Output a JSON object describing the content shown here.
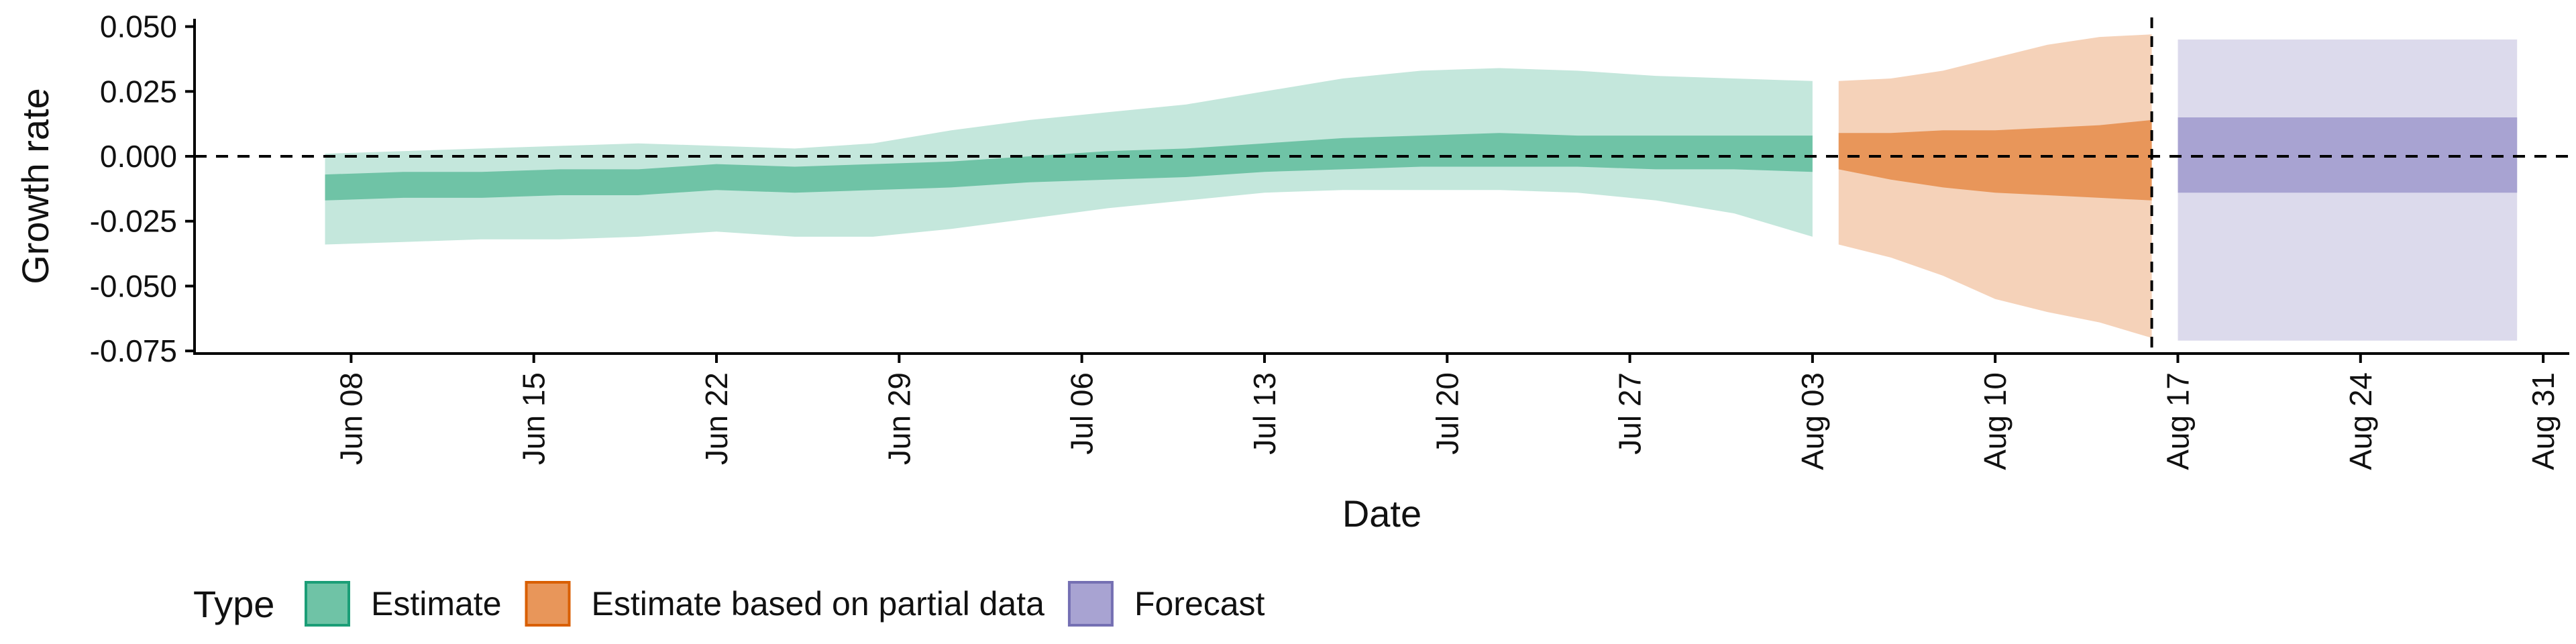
{
  "chart_data": {
    "type": "area",
    "xlabel": "Date",
    "ylabel": "Growth rate",
    "x_start": "2020-06-07",
    "x_range": [
      "2020-06-02",
      "2020-09-01"
    ],
    "ylim": [
      -0.076,
      0.053
    ],
    "x_ticks": [
      {
        "date": "2020-06-08",
        "label": "Jun 08"
      },
      {
        "date": "2020-06-15",
        "label": "Jun 15"
      },
      {
        "date": "2020-06-22",
        "label": "Jun 22"
      },
      {
        "date": "2020-06-29",
        "label": "Jun 29"
      },
      {
        "date": "2020-07-06",
        "label": "Jul 06"
      },
      {
        "date": "2020-07-13",
        "label": "Jul 13"
      },
      {
        "date": "2020-07-20",
        "label": "Jul 20"
      },
      {
        "date": "2020-07-27",
        "label": "Jul 27"
      },
      {
        "date": "2020-08-03",
        "label": "Aug 03"
      },
      {
        "date": "2020-08-10",
        "label": "Aug 10"
      },
      {
        "date": "2020-08-17",
        "label": "Aug 17"
      },
      {
        "date": "2020-08-24",
        "label": "Aug 24"
      },
      {
        "date": "2020-08-31",
        "label": "Aug 31"
      }
    ],
    "y_ticks": [
      {
        "value": 0.05,
        "label": "0.050"
      },
      {
        "value": 0.025,
        "label": "0.025"
      },
      {
        "value": 0.0,
        "label": "0.000"
      },
      {
        "value": -0.025,
        "label": "-0.025"
      },
      {
        "value": -0.05,
        "label": "-0.050"
      },
      {
        "value": -0.075,
        "label": "-0.075"
      }
    ],
    "hline_y": 0.0,
    "vline_date": "2020-08-16",
    "grid": false,
    "legend": {
      "position": "bottom-left",
      "title": "Type",
      "items": [
        {
          "label": "Estimate",
          "color": "#6fc3a6",
          "border": "#1b9e77"
        },
        {
          "label": "Estimate based on partial data",
          "color": "#e8965a",
          "border": "#d95f02"
        },
        {
          "label": "Forecast",
          "color": "#a8a3d2",
          "border": "#7570b3"
        }
      ]
    },
    "series": [
      {
        "type_label": "Estimate",
        "outer_color": "#c4e7dc",
        "inner_color": "#6fc3a6",
        "dates": [
          "2020-06-07",
          "2020-06-10",
          "2020-06-13",
          "2020-06-16",
          "2020-06-19",
          "2020-06-22",
          "2020-06-25",
          "2020-06-28",
          "2020-07-01",
          "2020-07-04",
          "2020-07-07",
          "2020-07-10",
          "2020-07-13",
          "2020-07-16",
          "2020-07-19",
          "2020-07-22",
          "2020-07-25",
          "2020-07-28",
          "2020-07-31",
          "2020-08-03"
        ],
        "outer_upper": [
          0.001,
          0.002,
          0.003,
          0.004,
          0.005,
          0.004,
          0.003,
          0.005,
          0.01,
          0.014,
          0.017,
          0.02,
          0.025,
          0.03,
          0.033,
          0.034,
          0.033,
          0.031,
          0.03,
          0.029
        ],
        "outer_lower": [
          -0.034,
          -0.033,
          -0.032,
          -0.032,
          -0.031,
          -0.029,
          -0.031,
          -0.031,
          -0.028,
          -0.024,
          -0.02,
          -0.017,
          -0.014,
          -0.013,
          -0.013,
          -0.013,
          -0.014,
          -0.017,
          -0.022,
          -0.031
        ],
        "inner_upper": [
          -0.007,
          -0.006,
          -0.006,
          -0.005,
          -0.005,
          -0.003,
          -0.004,
          -0.003,
          -0.002,
          0.0,
          0.002,
          0.003,
          0.005,
          0.007,
          0.008,
          0.009,
          0.008,
          0.008,
          0.008,
          0.008
        ],
        "inner_lower": [
          -0.017,
          -0.016,
          -0.016,
          -0.015,
          -0.015,
          -0.013,
          -0.014,
          -0.013,
          -0.012,
          -0.01,
          -0.009,
          -0.008,
          -0.006,
          -0.005,
          -0.004,
          -0.004,
          -0.004,
          -0.005,
          -0.005,
          -0.006
        ]
      },
      {
        "type_label": "Estimate based on partial data",
        "outer_color": "#f5d2b9",
        "inner_color": "#e8965a",
        "dates": [
          "2020-08-04",
          "2020-08-06",
          "2020-08-08",
          "2020-08-10",
          "2020-08-12",
          "2020-08-14",
          "2020-08-16"
        ],
        "outer_upper": [
          0.029,
          0.03,
          0.033,
          0.038,
          0.043,
          0.046,
          0.047
        ],
        "outer_lower": [
          -0.034,
          -0.039,
          -0.046,
          -0.055,
          -0.06,
          -0.064,
          -0.07
        ],
        "inner_upper": [
          0.009,
          0.009,
          0.01,
          0.01,
          0.011,
          0.012,
          0.014
        ],
        "inner_lower": [
          -0.005,
          -0.009,
          -0.012,
          -0.014,
          -0.015,
          -0.016,
          -0.017
        ]
      },
      {
        "type_label": "Forecast",
        "outer_color": "#dcdaec",
        "inner_color": "#a8a3d2",
        "dates": [
          "2020-08-17",
          "2020-08-30"
        ],
        "outer_upper": [
          0.045,
          0.045
        ],
        "outer_lower": [
          -0.071,
          -0.071
        ],
        "inner_upper": [
          0.015,
          0.015
        ],
        "inner_lower": [
          -0.014,
          -0.014
        ]
      }
    ]
  }
}
